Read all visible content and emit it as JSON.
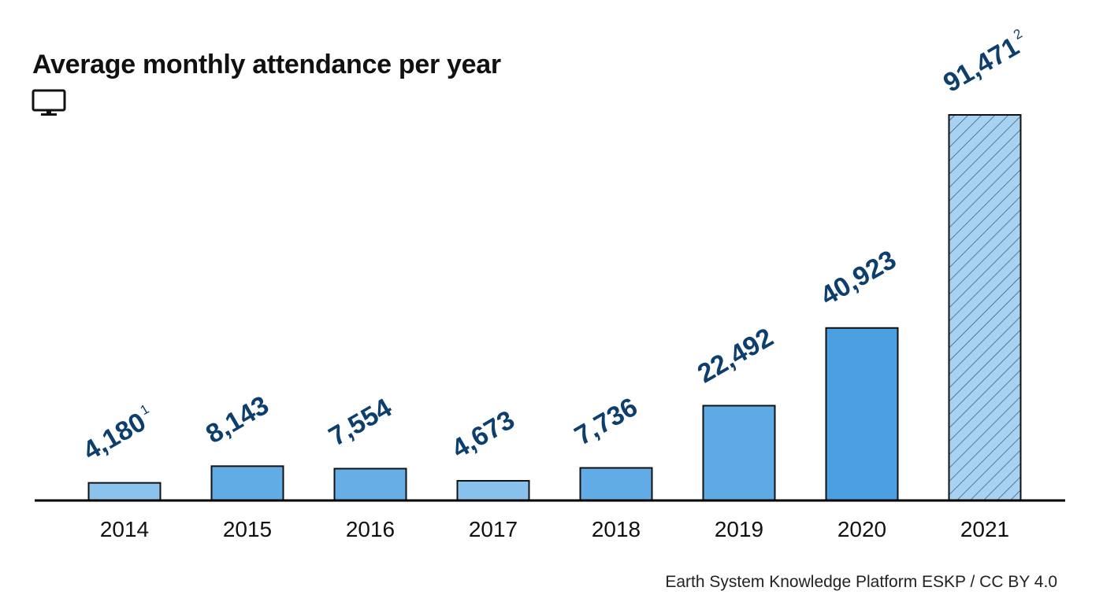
{
  "title": "Average monthly attendance per year",
  "credit": "Earth System Knowledge Platform ESKP / CC BY 4.0",
  "icons": {
    "media": "monitor-icon"
  },
  "colors": {
    "label": "#0d3f6e",
    "axis": "#000000",
    "bar_stroke": "#111111",
    "hatch": "#2d5f8f"
  },
  "chart_data": {
    "type": "bar",
    "title": "Average monthly attendance per year",
    "xlabel": "",
    "ylabel": "",
    "ylim": [
      0,
      91471
    ],
    "grid": false,
    "categories": [
      "2014",
      "2015",
      "2016",
      "2017",
      "2018",
      "2019",
      "2020",
      "2021"
    ],
    "values": [
      4180,
      8143,
      7554,
      4673,
      7736,
      22492,
      40923,
      91471
    ],
    "value_labels": [
      "4,180",
      "8,143",
      "7,554",
      "4,673",
      "7,736",
      "22,492",
      "40,923",
      "91,471"
    ],
    "footnotes": [
      "1",
      "",
      "",
      "",
      "",
      "",
      "",
      "2"
    ],
    "fills": [
      "#8bc3ec",
      "#62ace5",
      "#66aee5",
      "#88c2ec",
      "#62ace5",
      "#5eaae4",
      "#4aa0e0",
      "#a9d2f1"
    ],
    "hatched": [
      false,
      false,
      false,
      false,
      false,
      false,
      false,
      true
    ]
  }
}
